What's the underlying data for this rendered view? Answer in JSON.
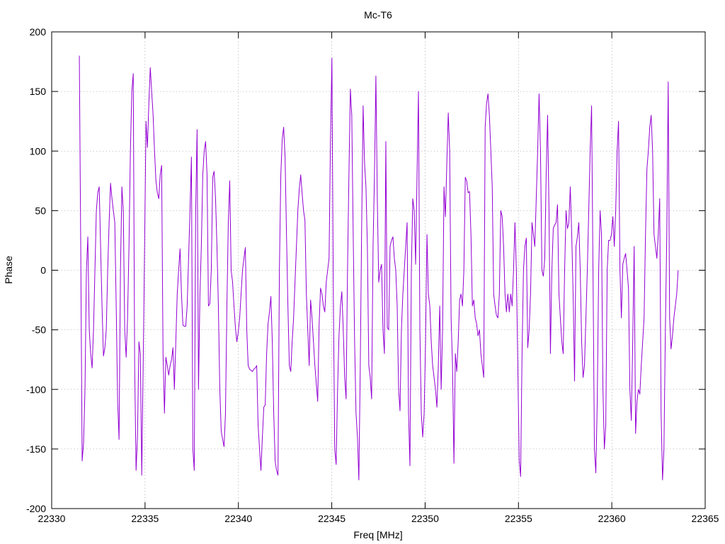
{
  "chart_data": {
    "type": "line",
    "title": "Mc-T6",
    "x_label": "Freq [MHz]",
    "y_label": "Phase",
    "color": "#9400d3",
    "grid": true,
    "xlim": [
      22330,
      22365
    ],
    "xticks": [
      22330,
      22335,
      22340,
      22345,
      22350,
      22355,
      22360,
      22365
    ],
    "ylim": [
      -200,
      200
    ],
    "yticks": [
      -200,
      -150,
      -100,
      -50,
      0,
      50,
      100,
      150,
      200
    ],
    "x": [
      22331.48,
      22331.556,
      22331.632,
      22331.708,
      22331.784,
      22331.86,
      22331.936,
      22332.012,
      22332.088,
      22332.164,
      22332.24,
      22332.316,
      22332.392,
      22332.468,
      22332.544,
      22332.62,
      22332.696,
      22332.772,
      22332.848,
      22332.924,
      22333.0,
      22333.076,
      22333.152,
      22333.228,
      22333.304,
      22333.38,
      22333.456,
      22333.532,
      22333.608,
      22333.684,
      22333.76,
      22333.836,
      22333.912,
      22333.988,
      22334.064,
      22334.14,
      22334.216,
      22334.292,
      22334.368,
      22334.444,
      22334.52,
      22334.596,
      22334.672,
      22334.748,
      22334.824,
      22334.9,
      22334.976,
      22335.052,
      22335.128,
      22335.204,
      22335.28,
      22335.356,
      22335.432,
      22335.508,
      22335.584,
      22335.66,
      22335.736,
      22335.812,
      22335.888,
      22335.964,
      22336.04,
      22336.116,
      22336.192,
      22336.268,
      22336.344,
      22336.42,
      22336.496,
      22336.572,
      22336.648,
      22336.724,
      22336.8,
      22336.876,
      22336.952,
      22337.028,
      22337.104,
      22337.18,
      22337.256,
      22337.332,
      22337.408,
      22337.484,
      22337.56,
      22337.636,
      22337.712,
      22337.788,
      22337.864,
      22337.94,
      22338.016,
      22338.092,
      22338.168,
      22338.244,
      22338.32,
      22338.396,
      22338.472,
      22338.548,
      22338.624,
      22338.7,
      22338.776,
      22338.852,
      22338.928,
      22339.004,
      22339.08,
      22339.156,
      22339.232,
      22339.308,
      22339.384,
      22339.46,
      22339.536,
      22339.612,
      22339.688,
      22339.764,
      22339.84,
      22339.916,
      22339.992,
      22340.068,
      22340.144,
      22340.22,
      22340.296,
      22340.372,
      22340.448,
      22340.524,
      22340.6,
      22340.676,
      22340.752,
      22340.828,
      22340.904,
      22340.98,
      22341.056,
      22341.132,
      22341.208,
      22341.284,
      22341.36,
      22341.436,
      22341.512,
      22341.588,
      22341.664,
      22341.74,
      22341.816,
      22341.892,
      22341.968,
      22342.044,
      22342.12,
      22342.196,
      22342.272,
      22342.348,
      22342.424,
      22342.5,
      22342.576,
      22342.652,
      22342.728,
      22342.804,
      22342.88,
      22342.956,
      22343.032,
      22343.108,
      22343.184,
      22343.26,
      22343.336,
      22343.412,
      22343.488,
      22343.564,
      22343.64,
      22343.716,
      22343.792,
      22343.868,
      22343.944,
      22344.02,
      22344.096,
      22344.172,
      22344.248,
      22344.324,
      22344.4,
      22344.476,
      22344.552,
      22344.628,
      22344.704,
      22344.78,
      22344.856,
      22344.932,
      22345.008,
      22345.084,
      22345.16,
      22345.236,
      22345.312,
      22345.388,
      22345.464,
      22345.54,
      22345.616,
      22345.692,
      22345.768,
      22345.844,
      22345.92,
      22345.996,
      22346.072,
      22346.148,
      22346.224,
      22346.3,
      22346.376,
      22346.452,
      22346.528,
      22346.604,
      22346.68,
      22346.756,
      22346.832,
      22346.908,
      22346.984,
      22347.06,
      22347.136,
      22347.212,
      22347.288,
      22347.364,
      22347.44,
      22347.516,
      22347.592,
      22347.668,
      22347.744,
      22347.82,
      22347.896,
      22347.972,
      22348.048,
      22348.124,
      22348.2,
      22348.276,
      22348.352,
      22348.428,
      22348.504,
      22348.58,
      22348.656,
      22348.732,
      22348.808,
      22348.884,
      22348.96,
      22349.036,
      22349.112,
      22349.188,
      22349.264,
      22349.34,
      22349.416,
      22349.492,
      22349.568,
      22349.644,
      22349.72,
      22349.796,
      22349.872,
      22349.948,
      22350.024,
      22350.1,
      22350.176,
      22350.252,
      22350.328,
      22350.404,
      22350.48,
      22350.556,
      22350.632,
      22350.708,
      22350.784,
      22350.86,
      22350.936,
      22351.012,
      22351.088,
      22351.164,
      22351.24,
      22351.316,
      22351.392,
      22351.468,
      22351.544,
      22351.62,
      22351.696,
      22351.772,
      22351.848,
      22351.924,
      22352.0,
      22352.076,
      22352.152,
      22352.228,
      22352.304,
      22352.38,
      22352.456,
      22352.532,
      22352.608,
      22352.684,
      22352.76,
      22352.836,
      22352.912,
      22352.988,
      22353.064,
      22353.14,
      22353.216,
      22353.292,
      22353.368,
      22353.444,
      22353.52,
      22353.596,
      22353.672,
      22353.748,
      22353.824,
      22353.9,
      22353.976,
      22354.052,
      22354.128,
      22354.204,
      22354.28,
      22354.356,
      22354.432,
      22354.508,
      22354.584,
      22354.66,
      22354.736,
      22354.812,
      22354.888,
      22354.964,
      22355.04,
      22355.116,
      22355.192,
      22355.268,
      22355.344,
      22355.42,
      22355.496,
      22355.572,
      22355.648,
      22355.724,
      22355.8,
      22355.876,
      22355.952,
      22356.028,
      22356.104,
      22356.18,
      22356.256,
      22356.332,
      22356.408,
      22356.484,
      22356.56,
      22356.636,
      22356.712,
      22356.788,
      22356.864,
      22356.94,
      22357.016,
      22357.092,
      22357.168,
      22357.244,
      22357.32,
      22357.396,
      22357.472,
      22357.548,
      22357.624,
      22357.7,
      22357.776,
      22357.852,
      22357.928,
      22358.004,
      22358.08,
      22358.156,
      22358.232,
      22358.308,
      22358.384,
      22358.46,
      22358.536,
      22358.612,
      22358.688,
      22358.764,
      22358.84,
      22358.916,
      22358.992,
      22359.068,
      22359.144,
      22359.22,
      22359.296,
      22359.372,
      22359.448,
      22359.524,
      22359.6,
      22359.676,
      22359.752,
      22359.828,
      22359.904,
      22359.98,
      22360.056,
      22360.132,
      22360.208,
      22360.284,
      22360.36,
      22360.436,
      22360.512,
      22360.588,
      22360.664,
      22360.74,
      22360.816,
      22360.892,
      22360.968,
      22361.044,
      22361.12,
      22361.196,
      22361.272,
      22361.348,
      22361.424,
      22361.5,
      22361.576,
      22361.652,
      22361.728,
      22361.804,
      22361.88,
      22361.956,
      22362.032,
      22362.108,
      22362.184,
      22362.26,
      22362.336,
      22362.412,
      22362.488,
      22362.564,
      22362.64,
      22362.716,
      22362.792,
      22362.868,
      22362.944,
      22363.02,
      22363.096,
      22363.172,
      22363.248,
      22363.324,
      22363.4,
      22363.476,
      22363.552
    ],
    "values": [
      180,
      20,
      -160,
      -145,
      -100,
      0,
      28,
      -50,
      -70,
      -82,
      -50,
      0,
      50,
      65,
      70,
      20,
      -30,
      -72,
      -65,
      -50,
      0,
      40,
      73,
      60,
      50,
      40,
      -30,
      -110,
      -142,
      0,
      70,
      50,
      -50,
      -73,
      -40,
      20,
      100,
      150,
      165,
      -80,
      -168,
      -140,
      -60,
      -70,
      -172,
      -80,
      20,
      125,
      103,
      140,
      170,
      150,
      130,
      100,
      75,
      65,
      60,
      80,
      88,
      -70,
      -120,
      -73,
      -80,
      -88,
      -80,
      -75,
      -65,
      -100,
      -60,
      -20,
      0,
      18,
      -20,
      -46,
      -47,
      -47,
      -30,
      10,
      50,
      95,
      -150,
      -168,
      50,
      118,
      -100,
      -20,
      20,
      80,
      100,
      108,
      80,
      -30,
      -28,
      0,
      78,
      83,
      60,
      20,
      -30,
      -100,
      -135,
      -142,
      -148,
      -120,
      -30,
      40,
      75,
      0,
      -10,
      -30,
      -48,
      -60,
      -52,
      -40,
      -20,
      0,
      10,
      19,
      -50,
      -80,
      -83,
      -84,
      -85,
      -83,
      -82,
      -80,
      -130,
      -150,
      -168,
      -140,
      -115,
      -113,
      -70,
      -45,
      -35,
      -22,
      -60,
      -120,
      -160,
      -168,
      -172,
      0,
      80,
      110,
      120,
      95,
      30,
      -30,
      -80,
      -85,
      -60,
      -40,
      -10,
      20,
      50,
      68,
      80,
      65,
      50,
      42,
      -20,
      -50,
      -80,
      -25,
      -40,
      -60,
      -80,
      -95,
      -110,
      -45,
      -15,
      -20,
      -30,
      -35,
      -10,
      0,
      10,
      110,
      178,
      -20,
      -150,
      -163,
      -100,
      -55,
      -30,
      -18,
      -50,
      -90,
      -108,
      0,
      80,
      152,
      130,
      30,
      -60,
      -120,
      -140,
      -176,
      -80,
      40,
      138,
      90,
      70,
      20,
      -80,
      -90,
      -108,
      20,
      80,
      163,
      60,
      -10,
      0,
      5,
      -50,
      -70,
      108,
      -48,
      -50,
      20,
      25,
      28,
      10,
      0,
      -30,
      -100,
      -118,
      -50,
      -20,
      0,
      20,
      40,
      -120,
      -164,
      0,
      60,
      50,
      5,
      80,
      150,
      -50,
      -120,
      -140,
      -120,
      -60,
      30,
      -20,
      -30,
      -60,
      -80,
      -90,
      -100,
      -115,
      -80,
      -30,
      -100,
      -50,
      70,
      45,
      90,
      132,
      100,
      -40,
      -80,
      -162,
      -70,
      -85,
      -60,
      -25,
      -20,
      -30,
      0,
      78,
      75,
      65,
      66,
      30,
      -30,
      -25,
      -40,
      -45,
      -55,
      -50,
      -70,
      -80,
      -90,
      120,
      140,
      148,
      130,
      100,
      70,
      -20,
      -30,
      -38,
      -40,
      -20,
      50,
      45,
      20,
      -20,
      -35,
      -20,
      -35,
      -20,
      -30,
      0,
      40,
      0,
      -80,
      -160,
      -173,
      -70,
      0,
      20,
      27,
      -65,
      -50,
      -20,
      40,
      30,
      20,
      60,
      100,
      148,
      100,
      0,
      -5,
      10,
      80,
      130,
      50,
      -70,
      0,
      35,
      38,
      40,
      55,
      -20,
      -40,
      -60,
      -70,
      0,
      50,
      35,
      40,
      70,
      30,
      -20,
      -93,
      20,
      28,
      40,
      0,
      -60,
      -90,
      -80,
      -40,
      0,
      50,
      100,
      138,
      0,
      -150,
      -170,
      -110,
      0,
      50,
      30,
      -100,
      -150,
      -130,
      0,
      25,
      25,
      30,
      45,
      20,
      50,
      100,
      125,
      0,
      -40,
      5,
      10,
      14,
      0,
      -15,
      -100,
      -126,
      -60,
      20,
      -137,
      -110,
      -100,
      -104,
      -80,
      -60,
      -40,
      30,
      85,
      100,
      120,
      130,
      100,
      30,
      20,
      10,
      30,
      60,
      -120,
      -176,
      -150,
      -50,
      30,
      158,
      -40,
      -66,
      -55,
      -40,
      -30,
      -20,
      0
    ]
  }
}
